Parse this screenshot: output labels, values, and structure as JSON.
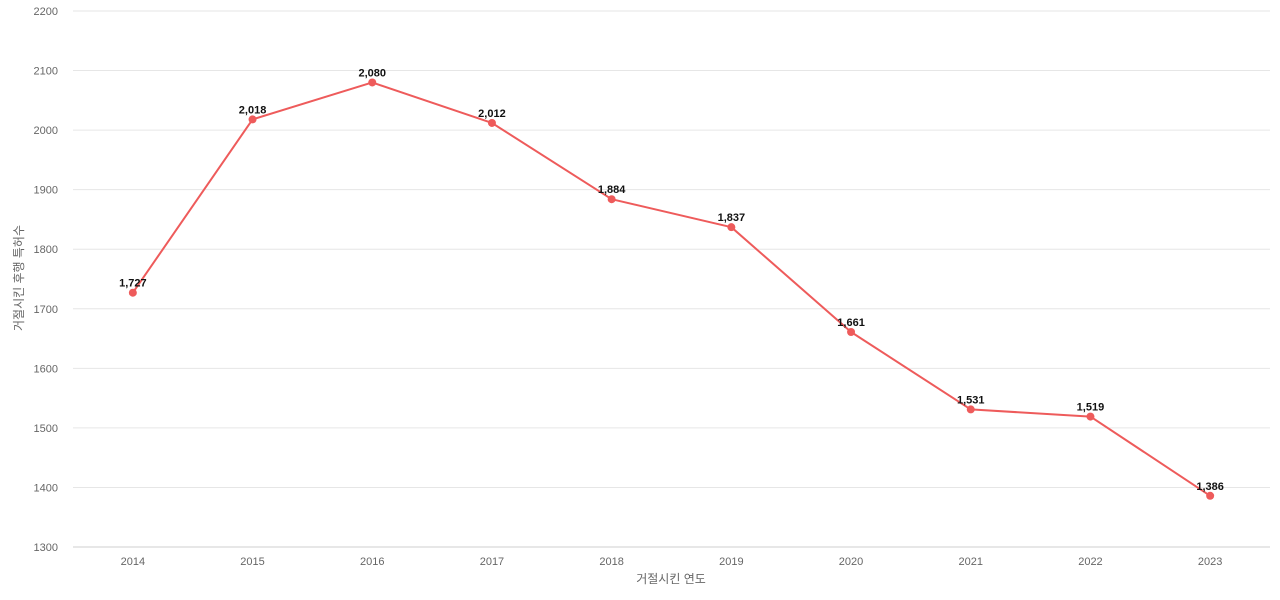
{
  "colors": {
    "series": "#ee5b5b",
    "grid": "#e6e6e6",
    "tick_text": "#666666",
    "data_label": "#111111"
  },
  "chart_data": {
    "type": "line",
    "x": [
      "2014",
      "2015",
      "2016",
      "2017",
      "2018",
      "2019",
      "2020",
      "2021",
      "2022",
      "2023"
    ],
    "series": [
      {
        "name": "",
        "values": [
          1727,
          2018,
          2080,
          2012,
          1884,
          1837,
          1661,
          1531,
          1519,
          1386
        ],
        "value_labels": [
          "1,727",
          "2,018",
          "2,080",
          "2,012",
          "1,884",
          "1,837",
          "1,661",
          "1,531",
          "1,519",
          "1,386"
        ]
      }
    ],
    "xlabel": "거절시킨 연도",
    "ylabel": "거절시킨 후행 특허수",
    "ylim": [
      1300,
      2200
    ],
    "yticks": [
      1300,
      1400,
      1500,
      1600,
      1700,
      1800,
      1900,
      2000,
      2100,
      2200
    ],
    "grid": true,
    "legend": "none"
  }
}
